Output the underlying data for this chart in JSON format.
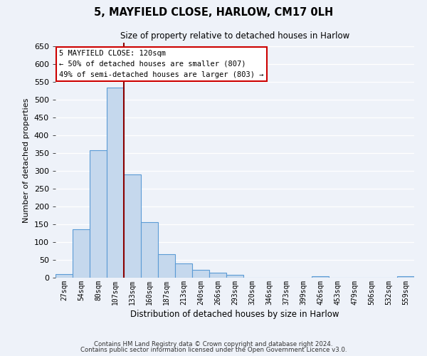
{
  "title": "5, MAYFIELD CLOSE, HARLOW, CM17 0LH",
  "subtitle": "Size of property relative to detached houses in Harlow",
  "xlabel": "Distribution of detached houses by size in Harlow",
  "ylabel": "Number of detached properties",
  "bar_labels": [
    "27sqm",
    "54sqm",
    "80sqm",
    "107sqm",
    "133sqm",
    "160sqm",
    "187sqm",
    "213sqm",
    "240sqm",
    "266sqm",
    "293sqm",
    "320sqm",
    "346sqm",
    "373sqm",
    "399sqm",
    "426sqm",
    "453sqm",
    "479sqm",
    "506sqm",
    "532sqm",
    "559sqm"
  ],
  "bar_values": [
    10,
    136,
    358,
    535,
    291,
    157,
    66,
    40,
    22,
    15,
    8,
    0,
    0,
    0,
    0,
    5,
    0,
    0,
    0,
    0,
    5
  ],
  "bar_color": "#c5d8ed",
  "bar_edge_color": "#5b9bd5",
  "vline_color": "#8b0000",
  "ylim": [
    0,
    660
  ],
  "yticks": [
    0,
    50,
    100,
    150,
    200,
    250,
    300,
    350,
    400,
    450,
    500,
    550,
    600,
    650
  ],
  "annotation_title": "5 MAYFIELD CLOSE: 120sqm",
  "annotation_line1": "← 50% of detached houses are smaller (807)",
  "annotation_line2": "49% of semi-detached houses are larger (803) →",
  "annotation_box_color": "#ffffff",
  "annotation_box_edge": "#cc0000",
  "footnote1": "Contains HM Land Registry data © Crown copyright and database right 2024.",
  "footnote2": "Contains public sector information licensed under the Open Government Licence v3.0.",
  "background_color": "#eef2f9",
  "grid_color": "#ffffff"
}
